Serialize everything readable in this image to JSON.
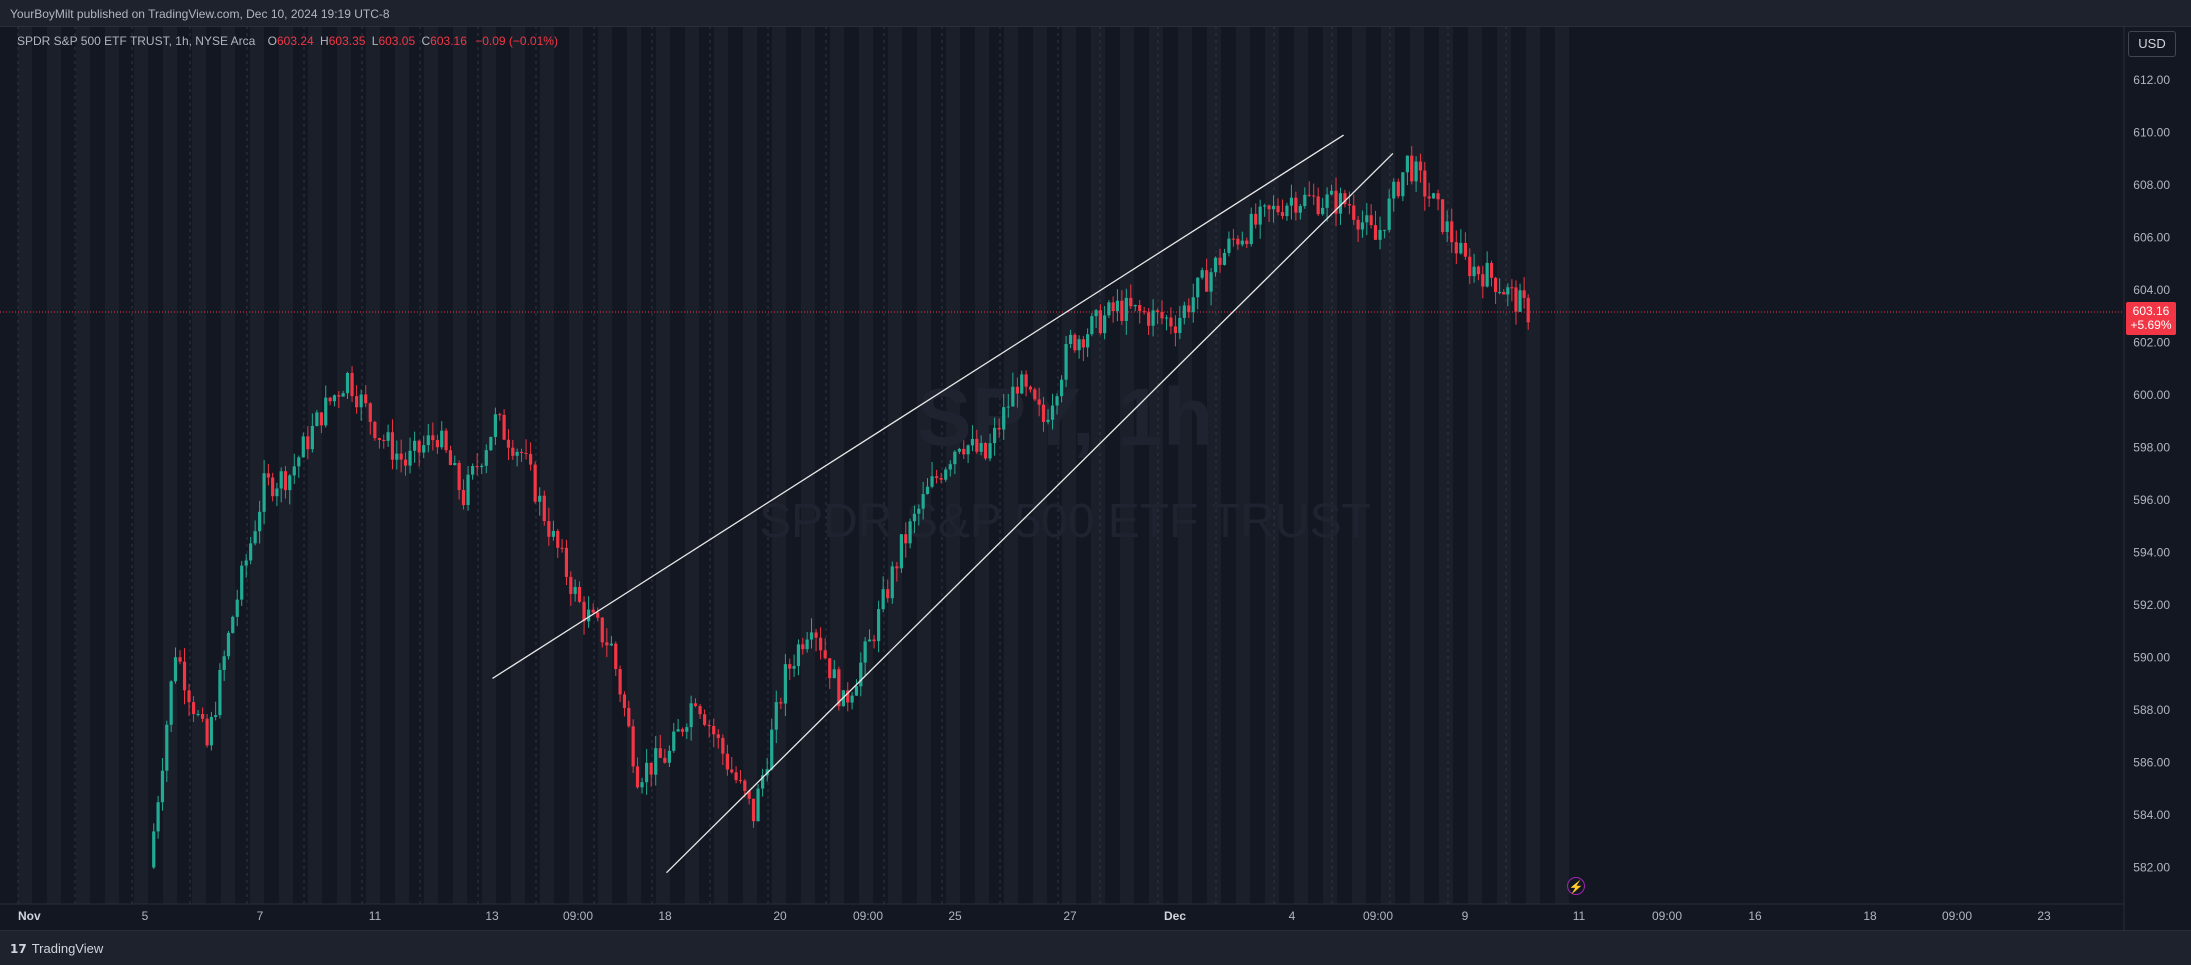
{
  "header": {
    "published_text": "YourBoyMilt published on TradingView.com, Dec 10, 2024 19:19 UTC-8"
  },
  "legend": {
    "symbol_text": "SPDR S&P 500 ETF TRUST, 1h, NYSE Arca",
    "open_label": "O",
    "open_value": "603.24",
    "high_label": "H",
    "high_value": "603.35",
    "low_label": "L",
    "low_value": "603.05",
    "close_label": "C",
    "close_value": "603.16",
    "change_text": "−0.09 (−0.01%)"
  },
  "currency_button": "USD",
  "price_tag": {
    "price": "603.16",
    "change": "+5.69%"
  },
  "watermark": {
    "line1": "SPY, 1h",
    "line2": "SPDR S&P 500 ETF TRUST"
  },
  "footer": {
    "brand": "TradingView",
    "brand_icon": "tradingview-logo-icon"
  },
  "colors": {
    "up": "#22ab94",
    "down": "#f23645",
    "background": "#131722",
    "session_shade": "#1b1f2a"
  },
  "chart_data": {
    "type": "candlestick",
    "timeframe": "1h",
    "y_axis_ticks": [
      582,
      584,
      586,
      588,
      590,
      592,
      594,
      596,
      598,
      600,
      602,
      604,
      606,
      608,
      610,
      612
    ],
    "x_axis_labels": [
      "Nov",
      "5",
      "7",
      "11",
      "13",
      "09:00",
      "18",
      "20",
      "09:00",
      "25",
      "27",
      "Dec",
      "4",
      "09:00",
      "9",
      "11",
      "09:00",
      "16",
      "18",
      "09:00",
      "23"
    ],
    "last_price": 603.16,
    "trendlines": [
      {
        "name": "upper",
        "from": [
          "Nov 14",
          589.2
        ],
        "to": [
          "Dec 6",
          609.9
        ]
      },
      {
        "name": "lower",
        "from": [
          "Nov 19",
          581.8
        ],
        "to": [
          "Dec 9",
          609.2
        ]
      }
    ],
    "price_path_anchors": [
      [
        "Nov 6",
        582.0
      ],
      [
        "Nov 6",
        590.3
      ],
      [
        "Nov 7",
        586.6
      ],
      [
        "Nov 7",
        591.6
      ],
      [
        "Nov 8",
        596.5
      ],
      [
        "Nov 8",
        597.0
      ],
      [
        "Nov 11",
        599.3
      ],
      [
        "Nov 11",
        600.7
      ],
      [
        "Nov 12",
        598.5
      ],
      [
        "Nov 12",
        597.4
      ],
      [
        "Nov 13",
        598.5
      ],
      [
        "Nov 13",
        596.1
      ],
      [
        "Nov 14",
        599.0
      ],
      [
        "Nov 14",
        597.8
      ],
      [
        "Nov 15",
        594.5
      ],
      [
        "Nov 15",
        592.0
      ],
      [
        "Nov 18",
        590.4
      ],
      [
        "Nov 18",
        585.6
      ],
      [
        "Nov 19",
        586.3
      ],
      [
        "Nov 19",
        588.6
      ],
      [
        "Nov 20",
        586.0
      ],
      [
        "Nov 20",
        584.0
      ],
      [
        "Nov 21",
        589.3
      ],
      [
        "Nov 21",
        591.5
      ],
      [
        "Nov 22",
        588.2
      ],
      [
        "Nov 22",
        590.5
      ],
      [
        "Nov 25",
        594.2
      ],
      [
        "Nov 25",
        596.3
      ],
      [
        "Nov 26",
        598.3
      ],
      [
        "Nov 26",
        597.6
      ],
      [
        "Nov 27",
        600.5
      ],
      [
        "Nov 27",
        599.0
      ],
      [
        "Nov 29",
        602.0
      ],
      [
        "Dec 2",
        603.3
      ],
      [
        "Dec 3",
        602.8
      ],
      [
        "Dec 4",
        605.9
      ],
      [
        "Dec 5",
        607.5
      ],
      [
        "Dec 6",
        607.3
      ],
      [
        "Dec 6",
        605.9
      ],
      [
        "Dec 9",
        608.9
      ],
      [
        "Dec 9",
        607.3
      ],
      [
        "Dec 10",
        605.0
      ],
      [
        "Dec 10",
        604.5
      ],
      [
        "Dec 11",
        603.16
      ]
    ]
  }
}
